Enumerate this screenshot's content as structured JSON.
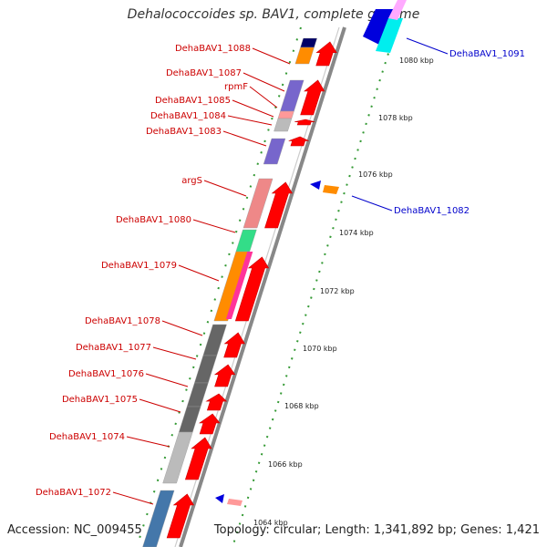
{
  "title": "Dehalococcoides sp. BAV1, complete genome",
  "accession": "Accession: NC_009455",
  "topology": "Topology: circular; Length: 1,341,892 bp; Genes: 1,421",
  "colors": {
    "gene_label_forward": "#cc0000",
    "gene_label_reverse": "#0000cc",
    "cds": "#ff0000",
    "backbone": "#888888",
    "tick": "#339933"
  },
  "kbp_ticks": [
    "1080 kbp",
    "1078 kbp",
    "1076 kbp",
    "1074 kbp",
    "1072 kbp",
    "1070 kbp",
    "1068 kbp",
    "1066 kbp",
    "1064 kbp"
  ],
  "gene_labels_left": [
    "DehaBAV1_1088",
    "DehaBAV1_1087",
    "rpmF",
    "DehaBAV1_1085",
    "DehaBAV1_1084",
    "DehaBAV1_1083",
    "argS",
    "DehaBAV1_1080",
    "DehaBAV1_1079",
    "DehaBAV1_1078",
    "DehaBAV1_1077",
    "DehaBAV1_1076",
    "DehaBAV1_1075",
    "DehaBAV1_1074",
    "DehaBAV1_1072"
  ],
  "gene_labels_right": [
    "DehaBAV1_1091",
    "DehaBAV1_1082"
  ]
}
